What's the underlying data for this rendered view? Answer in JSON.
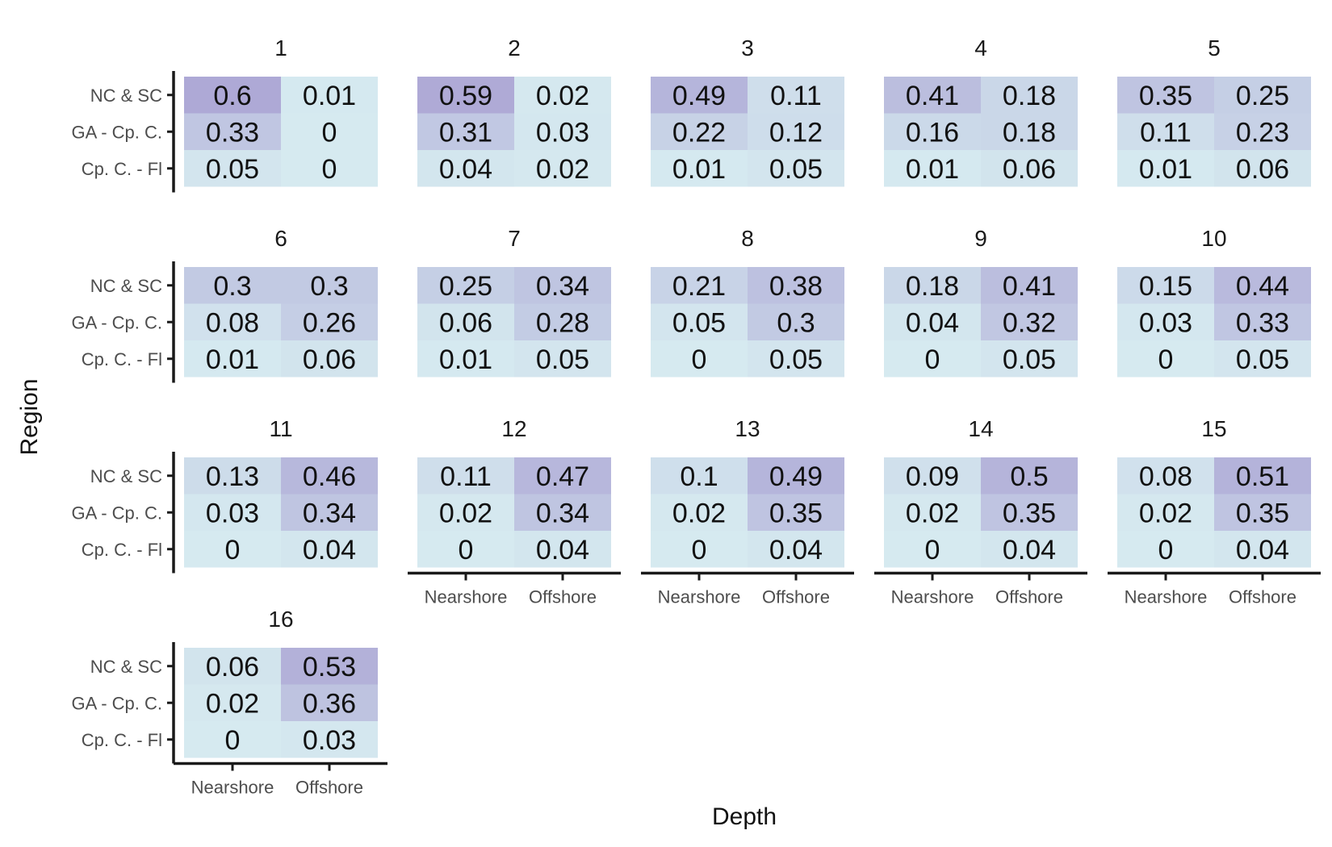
{
  "chart_data": {
    "type": "heatmap",
    "xlabel": "Depth",
    "ylabel": "Region",
    "x_categories": [
      "Nearshore",
      "Offshore"
    ],
    "y_categories": [
      "NC & SC",
      "GA - Cp. C.",
      "Cp. C. - Fl"
    ],
    "color_scale": {
      "low": "#d6eaf0",
      "high": "#aea9d6",
      "min": 0,
      "max": 0.6
    },
    "grid": false,
    "facets": [
      {
        "title": "1",
        "values": [
          [
            0.6,
            0.01
          ],
          [
            0.33,
            0
          ],
          [
            0.05,
            0
          ]
        ]
      },
      {
        "title": "2",
        "values": [
          [
            0.59,
            0.02
          ],
          [
            0.31,
            0.03
          ],
          [
            0.04,
            0.02
          ]
        ]
      },
      {
        "title": "3",
        "values": [
          [
            0.49,
            0.11
          ],
          [
            0.22,
            0.12
          ],
          [
            0.01,
            0.05
          ]
        ]
      },
      {
        "title": "4",
        "values": [
          [
            0.41,
            0.18
          ],
          [
            0.16,
            0.18
          ],
          [
            0.01,
            0.06
          ]
        ]
      },
      {
        "title": "5",
        "values": [
          [
            0.35,
            0.25
          ],
          [
            0.11,
            0.23
          ],
          [
            0.01,
            0.06
          ]
        ]
      },
      {
        "title": "6",
        "values": [
          [
            0.3,
            0.3
          ],
          [
            0.08,
            0.26
          ],
          [
            0.01,
            0.06
          ]
        ]
      },
      {
        "title": "7",
        "values": [
          [
            0.25,
            0.34
          ],
          [
            0.06,
            0.28
          ],
          [
            0.01,
            0.05
          ]
        ]
      },
      {
        "title": "8",
        "values": [
          [
            0.21,
            0.38
          ],
          [
            0.05,
            0.3
          ],
          [
            0,
            0.05
          ]
        ]
      },
      {
        "title": "9",
        "values": [
          [
            0.18,
            0.41
          ],
          [
            0.04,
            0.32
          ],
          [
            0,
            0.05
          ]
        ]
      },
      {
        "title": "10",
        "values": [
          [
            0.15,
            0.44
          ],
          [
            0.03,
            0.33
          ],
          [
            0,
            0.05
          ]
        ]
      },
      {
        "title": "11",
        "values": [
          [
            0.13,
            0.46
          ],
          [
            0.03,
            0.34
          ],
          [
            0,
            0.04
          ]
        ]
      },
      {
        "title": "12",
        "values": [
          [
            0.11,
            0.47
          ],
          [
            0.02,
            0.34
          ],
          [
            0,
            0.04
          ]
        ]
      },
      {
        "title": "13",
        "values": [
          [
            0.1,
            0.49
          ],
          [
            0.02,
            0.35
          ],
          [
            0,
            0.04
          ]
        ]
      },
      {
        "title": "14",
        "values": [
          [
            0.09,
            0.5
          ],
          [
            0.02,
            0.35
          ],
          [
            0,
            0.04
          ]
        ]
      },
      {
        "title": "15",
        "values": [
          [
            0.08,
            0.51
          ],
          [
            0.02,
            0.35
          ],
          [
            0,
            0.04
          ]
        ]
      },
      {
        "title": "16",
        "values": [
          [
            0.06,
            0.53
          ],
          [
            0.02,
            0.36
          ],
          [
            0,
            0.03
          ]
        ]
      }
    ]
  }
}
